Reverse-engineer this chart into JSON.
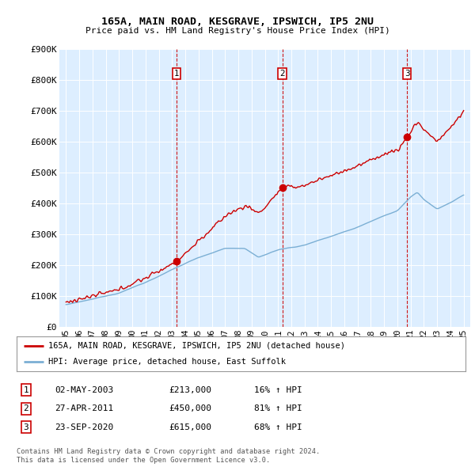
{
  "title": "165A, MAIN ROAD, KESGRAVE, IPSWICH, IP5 2NU",
  "subtitle": "Price paid vs. HM Land Registry's House Price Index (HPI)",
  "legend_line1": "165A, MAIN ROAD, KESGRAVE, IPSWICH, IP5 2NU (detached house)",
  "legend_line2": "HPI: Average price, detached house, East Suffolk",
  "sale_dates": [
    2003.33,
    2011.32,
    2020.73
  ],
  "sale_prices": [
    213000,
    450000,
    615000
  ],
  "sale_labels": [
    "02-MAY-2003",
    "27-APR-2011",
    "23-SEP-2020"
  ],
  "sale_prices_str": [
    "£213,000",
    "£450,000",
    "£615,000"
  ],
  "sale_pct": [
    "16% ↑ HPI",
    "81% ↑ HPI",
    "68% ↑ HPI"
  ],
  "ylim": [
    0,
    900000
  ],
  "xlim": [
    1994.5,
    2025.5
  ],
  "yticks": [
    0,
    100000,
    200000,
    300000,
    400000,
    500000,
    600000,
    700000,
    800000,
    900000
  ],
  "ytick_labels": [
    "£0",
    "£100K",
    "£200K",
    "£300K",
    "£400K",
    "£500K",
    "£600K",
    "£700K",
    "£800K",
    "£900K"
  ],
  "xticks": [
    1995,
    1996,
    1997,
    1998,
    1999,
    2000,
    2001,
    2002,
    2003,
    2004,
    2005,
    2006,
    2007,
    2008,
    2009,
    2010,
    2011,
    2012,
    2013,
    2014,
    2015,
    2016,
    2017,
    2018,
    2019,
    2020,
    2021,
    2022,
    2023,
    2024,
    2025
  ],
  "red_color": "#cc0000",
  "blue_color": "#7bafd4",
  "bg_plot": "#ddeeff",
  "bg_figure": "#ffffff",
  "marker_box_color": "#cc0000",
  "footer_line1": "Contains HM Land Registry data © Crown copyright and database right 2024.",
  "footer_line2": "This data is licensed under the Open Government Licence v3.0.",
  "number_marker_y": 820000
}
